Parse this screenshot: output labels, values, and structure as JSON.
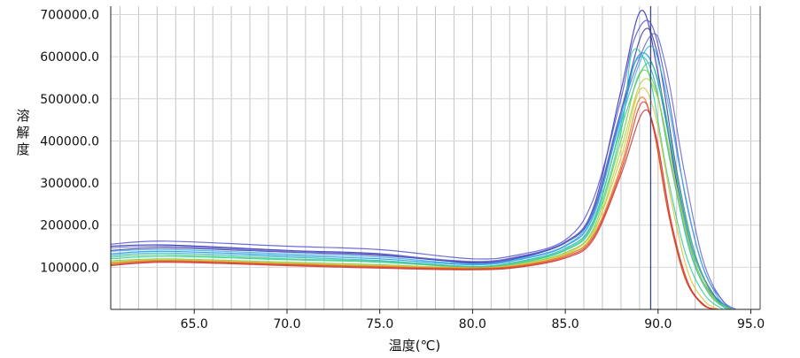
{
  "chart_data": {
    "type": "line",
    "title": "",
    "xlabel": "温度(℃)",
    "ylabel": "溶解度",
    "xlim": [
      60.5,
      95.5
    ],
    "ylim": [
      0,
      720000
    ],
    "x_ticks": [
      "65.0",
      "70.0",
      "75.0",
      "80.0",
      "85.0",
      "90.0",
      "95.0"
    ],
    "y_ticks": [
      "100000.0",
      "200000.0",
      "300000.0",
      "400000.0",
      "500000.0",
      "600000.0",
      "700000.0"
    ],
    "grid": true,
    "vertical_marker_x": 89.6,
    "series": [
      {
        "color": "#2e2eb8",
        "values": [
          [
            60.5,
            150000
          ],
          [
            63.5,
            153000
          ],
          [
            70,
            140000
          ],
          [
            75,
            132000
          ],
          [
            80,
            110000
          ],
          [
            82.5,
            122000
          ],
          [
            85,
            160000
          ],
          [
            86.5,
            240000
          ],
          [
            88,
            520000
          ],
          [
            89.1,
            710000
          ],
          [
            90,
            560000
          ],
          [
            91,
            300000
          ],
          [
            92,
            110000
          ],
          [
            93,
            30000
          ],
          [
            94,
            0
          ]
        ]
      },
      {
        "color": "#5555d0",
        "values": [
          [
            60.5,
            155000
          ],
          [
            63.5,
            162000
          ],
          [
            70,
            150000
          ],
          [
            75,
            142000
          ],
          [
            80,
            120000
          ],
          [
            82.5,
            130000
          ],
          [
            85,
            165000
          ],
          [
            86.5,
            260000
          ],
          [
            88,
            500000
          ],
          [
            88.7,
            640000
          ],
          [
            89.6,
            680000
          ],
          [
            90.5,
            520000
          ],
          [
            91.5,
            260000
          ],
          [
            92.5,
            90000
          ],
          [
            93.5,
            20000
          ],
          [
            94,
            0
          ]
        ]
      },
      {
        "color": "#3a3aa8",
        "values": [
          [
            60.5,
            140000
          ],
          [
            63.5,
            146000
          ],
          [
            70,
            136000
          ],
          [
            75,
            128000
          ],
          [
            80,
            112000
          ],
          [
            82.5,
            124000
          ],
          [
            85,
            158000
          ],
          [
            86.5,
            230000
          ],
          [
            88,
            470000
          ],
          [
            89.2,
            660000
          ],
          [
            90,
            600000
          ],
          [
            91,
            330000
          ],
          [
            92,
            130000
          ],
          [
            93,
            35000
          ],
          [
            94,
            0
          ]
        ]
      },
      {
        "color": "#1a8fe0",
        "values": [
          [
            60.5,
            132000
          ],
          [
            63.5,
            138000
          ],
          [
            70,
            128000
          ],
          [
            75,
            120000
          ],
          [
            80,
            106000
          ],
          [
            82.5,
            118000
          ],
          [
            85,
            150000
          ],
          [
            86.5,
            220000
          ],
          [
            88,
            460000
          ],
          [
            88.9,
            600000
          ],
          [
            89.8,
            570000
          ],
          [
            90.8,
            360000
          ],
          [
            91.8,
            150000
          ],
          [
            92.8,
            45000
          ],
          [
            93.8,
            0
          ]
        ]
      },
      {
        "color": "#20b4c8",
        "values": [
          [
            60.5,
            128000
          ],
          [
            63.5,
            134000
          ],
          [
            70,
            124000
          ],
          [
            75,
            116000
          ],
          [
            80,
            102000
          ],
          [
            82.5,
            114000
          ],
          [
            85,
            145000
          ],
          [
            86.5,
            210000
          ],
          [
            88,
            440000
          ],
          [
            88.8,
            590000
          ],
          [
            89.7,
            560000
          ],
          [
            90.7,
            340000
          ],
          [
            91.7,
            140000
          ],
          [
            92.7,
            40000
          ],
          [
            93.7,
            0
          ]
        ]
      },
      {
        "color": "#2ccf9a",
        "values": [
          [
            60.5,
            120000
          ],
          [
            63.5,
            126000
          ],
          [
            70,
            118000
          ],
          [
            75,
            112000
          ],
          [
            80,
            100000
          ],
          [
            82.5,
            110000
          ],
          [
            85,
            140000
          ],
          [
            86.5,
            200000
          ],
          [
            88,
            420000
          ],
          [
            88.6,
            610000
          ],
          [
            89.5,
            560000
          ],
          [
            90.5,
            320000
          ],
          [
            91.5,
            130000
          ],
          [
            92.5,
            35000
          ],
          [
            93.5,
            0
          ]
        ]
      },
      {
        "color": "#6ad04a",
        "values": [
          [
            60.5,
            115000
          ],
          [
            63.5,
            120000
          ],
          [
            70,
            112000
          ],
          [
            75,
            106000
          ],
          [
            80,
            98000
          ],
          [
            82.5,
            108000
          ],
          [
            85,
            135000
          ],
          [
            86.5,
            190000
          ],
          [
            88,
            400000
          ],
          [
            89,
            560000
          ],
          [
            89.9,
            520000
          ],
          [
            90.9,
            300000
          ],
          [
            91.9,
            120000
          ],
          [
            92.9,
            30000
          ],
          [
            93.9,
            0
          ]
        ]
      },
      {
        "color": "#a6d63a",
        "values": [
          [
            60.5,
            108000
          ],
          [
            63.5,
            116000
          ],
          [
            70,
            108000
          ],
          [
            75,
            102000
          ],
          [
            80,
            95000
          ],
          [
            82.5,
            104000
          ],
          [
            85,
            130000
          ],
          [
            86.5,
            180000
          ],
          [
            88,
            380000
          ],
          [
            89.1,
            540000
          ],
          [
            90,
            500000
          ],
          [
            91,
            290000
          ],
          [
            92,
            110000
          ],
          [
            93,
            28000
          ],
          [
            94,
            0
          ]
        ]
      },
      {
        "color": "#e0c030",
        "values": [
          [
            60.5,
            112000
          ],
          [
            63.5,
            118000
          ],
          [
            70,
            110000
          ],
          [
            75,
            104000
          ],
          [
            80,
            100000
          ],
          [
            82.5,
            106000
          ],
          [
            85,
            132000
          ],
          [
            86.5,
            185000
          ],
          [
            88,
            360000
          ],
          [
            89,
            520000
          ],
          [
            89.8,
            470000
          ],
          [
            90.7,
            260000
          ],
          [
            91.6,
            90000
          ],
          [
            92.5,
            20000
          ],
          [
            93.3,
            0
          ]
        ]
      },
      {
        "color": "#e8801c",
        "values": [
          [
            60.5,
            110000
          ],
          [
            63.5,
            116000
          ],
          [
            70,
            108000
          ],
          [
            75,
            102000
          ],
          [
            80,
            98000
          ],
          [
            82.5,
            104000
          ],
          [
            85,
            128000
          ],
          [
            86.5,
            175000
          ],
          [
            88,
            340000
          ],
          [
            89,
            500000
          ],
          [
            89.7,
            440000
          ],
          [
            90.5,
            240000
          ],
          [
            91.4,
            80000
          ],
          [
            92.3,
            15000
          ],
          [
            93,
            0
          ]
        ]
      },
      {
        "color": "#e03a2a",
        "values": [
          [
            60.5,
            106000
          ],
          [
            63.5,
            114000
          ],
          [
            70,
            106000
          ],
          [
            75,
            100000
          ],
          [
            80,
            96000
          ],
          [
            82.5,
            102000
          ],
          [
            85,
            125000
          ],
          [
            86.5,
            170000
          ],
          [
            88,
            330000
          ],
          [
            89.1,
            490000
          ],
          [
            89.8,
            420000
          ],
          [
            90.6,
            220000
          ],
          [
            91.5,
            70000
          ],
          [
            92.4,
            12000
          ],
          [
            93.1,
            0
          ]
        ]
      },
      {
        "color": "#c8302a",
        "values": [
          [
            60.5,
            104000
          ],
          [
            63.5,
            112000
          ],
          [
            70,
            104000
          ],
          [
            75,
            98000
          ],
          [
            80,
            94000
          ],
          [
            82.5,
            100000
          ],
          [
            85,
            122000
          ],
          [
            86.5,
            165000
          ],
          [
            88,
            320000
          ],
          [
            89.2,
            470000
          ],
          [
            89.9,
            410000
          ],
          [
            90.7,
            210000
          ],
          [
            91.6,
            65000
          ],
          [
            92.5,
            10000
          ],
          [
            93.2,
            0
          ]
        ]
      },
      {
        "color": "#3ab0e8",
        "values": [
          [
            60.5,
            138000
          ],
          [
            63.5,
            142000
          ],
          [
            70,
            132000
          ],
          [
            75,
            124000
          ],
          [
            80,
            108000
          ],
          [
            82.5,
            120000
          ],
          [
            85,
            152000
          ],
          [
            86.5,
            225000
          ],
          [
            88,
            450000
          ],
          [
            89.4,
            620000
          ],
          [
            90.2,
            560000
          ],
          [
            91.2,
            330000
          ],
          [
            92.2,
            130000
          ],
          [
            93.2,
            30000
          ],
          [
            94,
            0
          ]
        ]
      },
      {
        "color": "#48c878",
        "values": [
          [
            60.5,
            124000
          ],
          [
            63.5,
            130000
          ],
          [
            70,
            120000
          ],
          [
            75,
            114000
          ],
          [
            80,
            101000
          ],
          [
            82.5,
            112000
          ],
          [
            85,
            142000
          ],
          [
            86.5,
            205000
          ],
          [
            88,
            430000
          ],
          [
            89.3,
            580000
          ],
          [
            90.1,
            530000
          ],
          [
            91.1,
            300000
          ],
          [
            92.1,
            115000
          ],
          [
            93.1,
            25000
          ],
          [
            94,
            0
          ]
        ]
      },
      {
        "color": "#6666cc",
        "values": [
          [
            60.5,
            146000
          ],
          [
            63.5,
            150000
          ],
          [
            70,
            138000
          ],
          [
            75,
            130000
          ],
          [
            80,
            114000
          ],
          [
            82.5,
            126000
          ],
          [
            85,
            160000
          ],
          [
            86.5,
            235000
          ],
          [
            88,
            470000
          ],
          [
            89.6,
            650000
          ],
          [
            90.4,
            580000
          ],
          [
            91.4,
            330000
          ],
          [
            92.4,
            120000
          ],
          [
            93.4,
            25000
          ],
          [
            94.2,
            0
          ]
        ]
      }
    ]
  }
}
